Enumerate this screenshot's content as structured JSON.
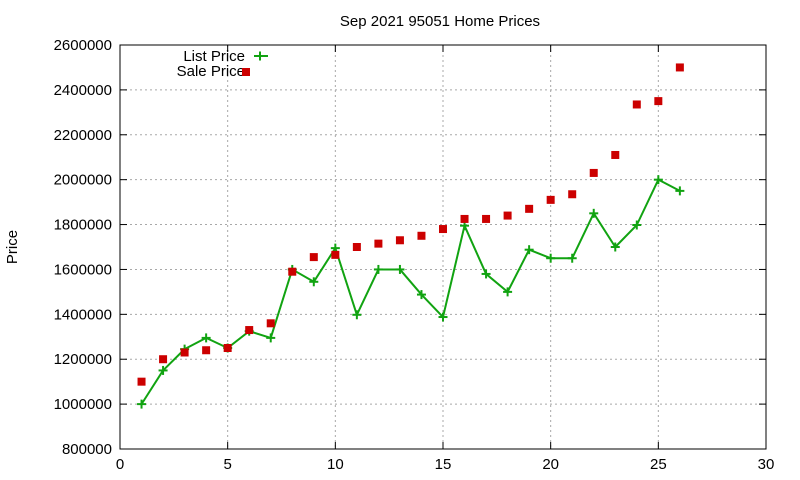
{
  "chart_data": {
    "type": "line",
    "title": "Sep 2021 95051 Home Prices",
    "xlabel": "",
    "ylabel": "Price",
    "xlim": [
      0,
      30
    ],
    "ylim": [
      800000,
      2600000
    ],
    "xticks": [
      0,
      5,
      10,
      15,
      20,
      25,
      30
    ],
    "yticks": [
      800000,
      1000000,
      1200000,
      1400000,
      1600000,
      1800000,
      2000000,
      2200000,
      2400000,
      2600000
    ],
    "grid": true,
    "legend_position": "top-left",
    "series": [
      {
        "name": "List Price",
        "style": "line-with-plus-markers",
        "color": "#11a311",
        "x": [
          1,
          2,
          3,
          4,
          5,
          6,
          7,
          8,
          9,
          10,
          11,
          12,
          13,
          14,
          15,
          16,
          17,
          18,
          19,
          20,
          21,
          22,
          23,
          24,
          25,
          26
        ],
        "y": [
          1000000,
          1150000,
          1245000,
          1295000,
          1250000,
          1325000,
          1295000,
          1600000,
          1545000,
          1695000,
          1398000,
          1600000,
          1600000,
          1488000,
          1388000,
          1795000,
          1580000,
          1500000,
          1688000,
          1650000,
          1650000,
          1850000,
          1700000,
          1798000,
          2000000,
          1950000
        ]
      },
      {
        "name": "Sale Price",
        "style": "square-markers",
        "color": "#cc0000",
        "x": [
          1,
          2,
          3,
          4,
          5,
          6,
          7,
          8,
          9,
          10,
          11,
          12,
          13,
          14,
          15,
          16,
          17,
          18,
          19,
          20,
          21,
          22,
          23,
          24,
          25,
          26
        ],
        "y": [
          1100000,
          1200000,
          1230000,
          1240000,
          1250000,
          1330000,
          1360000,
          1590000,
          1655000,
          1665000,
          1700000,
          1715000,
          1730000,
          1750000,
          1780000,
          1825000,
          1825000,
          1840000,
          1870000,
          1910000,
          1935000,
          2030000,
          2110000,
          2335000,
          2350000,
          2500000
        ]
      }
    ]
  }
}
